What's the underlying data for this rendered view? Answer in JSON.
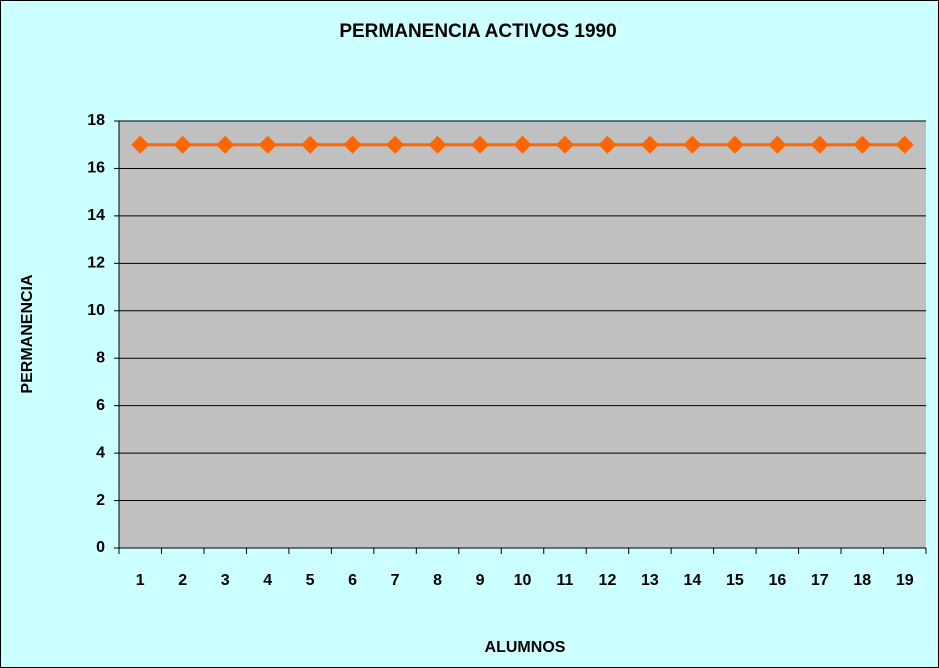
{
  "chart_data": {
    "type": "line",
    "title": "PERMANENCIA ACTIVOS 1990",
    "x_label": "ALUMNOS",
    "y_label": "PERMANENCIA",
    "categories": [
      "1",
      "2",
      "3",
      "4",
      "5",
      "6",
      "7",
      "8",
      "9",
      "10",
      "11",
      "12",
      "13",
      "14",
      "15",
      "16",
      "17",
      "18",
      "19"
    ],
    "series": [
      {
        "name": "PERMANENCIA",
        "color": "#ff6600",
        "values": [
          17,
          17,
          17,
          17,
          17,
          17,
          17,
          17,
          17,
          17,
          17,
          17,
          17,
          17,
          17,
          17,
          17,
          17,
          17
        ]
      }
    ],
    "ylim": [
      0,
      18
    ],
    "yticks": [
      0,
      2,
      4,
      6,
      8,
      10,
      12,
      14,
      16,
      18
    ],
    "grid": true,
    "legend": false
  }
}
